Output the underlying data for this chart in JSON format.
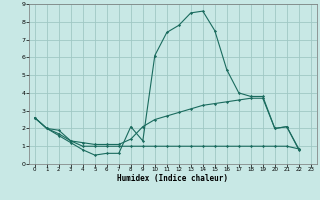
{
  "title": "",
  "xlabel": "Humidex (Indice chaleur)",
  "xlim": [
    -0.5,
    23.5
  ],
  "ylim": [
    0,
    9.0
  ],
  "xticks": [
    0,
    1,
    2,
    3,
    4,
    5,
    6,
    7,
    8,
    9,
    10,
    11,
    12,
    13,
    14,
    15,
    16,
    17,
    18,
    19,
    20,
    21,
    22,
    23
  ],
  "yticks": [
    0,
    1,
    2,
    3,
    4,
    5,
    6,
    7,
    8,
    9
  ],
  "bg_color": "#c8e8e5",
  "grid_color": "#a0c8c4",
  "line_color": "#1a6b5e",
  "line1_x": [
    0,
    1,
    2,
    3,
    4,
    5,
    6,
    7,
    8,
    9,
    10,
    11,
    12,
    13,
    14,
    15,
    16,
    17,
    18,
    19,
    20,
    21,
    22
  ],
  "line1_y": [
    2.6,
    2.0,
    1.6,
    1.2,
    0.8,
    0.5,
    0.6,
    0.6,
    2.1,
    1.3,
    6.1,
    7.4,
    7.8,
    8.5,
    8.6,
    7.5,
    5.3,
    4.0,
    3.8,
    3.8,
    2.0,
    2.1,
    0.8
  ],
  "line2_x": [
    0,
    1,
    2,
    3,
    4,
    5,
    6,
    7,
    8,
    9,
    10,
    11,
    12,
    13,
    14,
    15,
    16,
    17,
    18,
    19,
    20,
    21,
    22
  ],
  "line2_y": [
    2.6,
    2.0,
    1.9,
    1.3,
    1.2,
    1.1,
    1.1,
    1.1,
    1.4,
    2.1,
    2.5,
    2.7,
    2.9,
    3.1,
    3.3,
    3.4,
    3.5,
    3.6,
    3.7,
    3.7,
    2.0,
    2.1,
    0.85
  ],
  "line3_x": [
    0,
    1,
    2,
    3,
    4,
    5,
    6,
    7,
    8,
    9,
    10,
    11,
    12,
    13,
    14,
    15,
    16,
    17,
    18,
    19,
    20,
    21,
    22
  ],
  "line3_y": [
    2.6,
    2.0,
    1.7,
    1.3,
    1.0,
    1.0,
    1.0,
    1.0,
    1.0,
    1.0,
    1.0,
    1.0,
    1.0,
    1.0,
    1.0,
    1.0,
    1.0,
    1.0,
    1.0,
    1.0,
    1.0,
    1.0,
    0.85
  ]
}
